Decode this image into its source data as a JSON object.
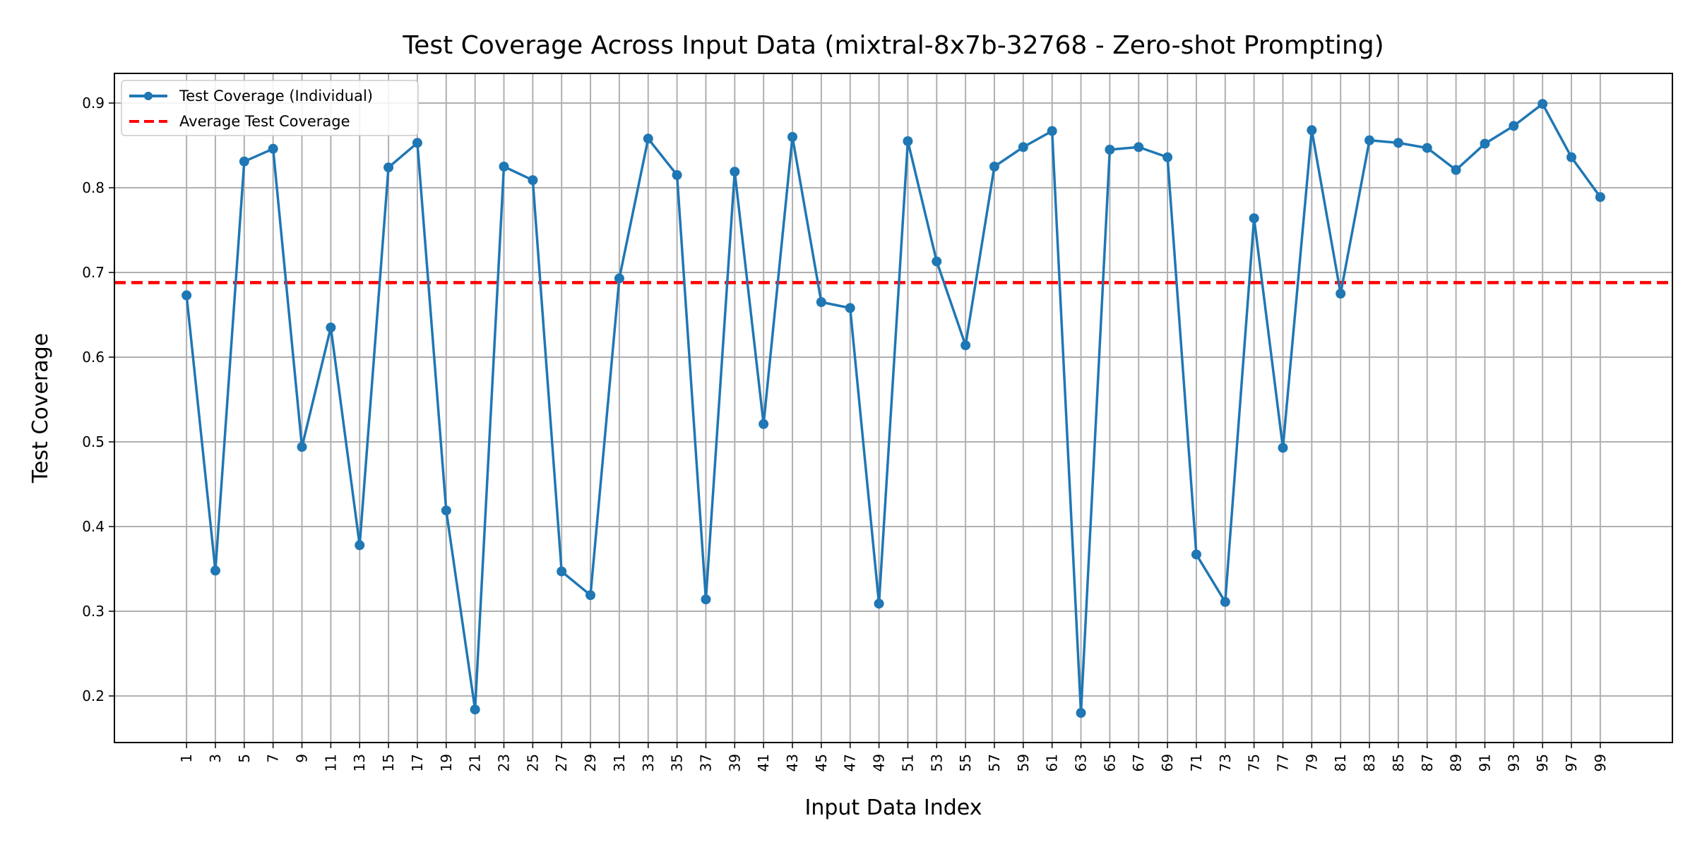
{
  "chart_data": {
    "type": "line",
    "title": "Test Coverage Across Input Data (mixtral-8x7b-32768 - Zero-shot Prompting)",
    "xlabel": "Input Data Index",
    "ylabel": "Test Coverage",
    "x": [
      1,
      3,
      5,
      7,
      9,
      11,
      13,
      15,
      17,
      19,
      21,
      23,
      25,
      27,
      29,
      31,
      33,
      35,
      37,
      39,
      41,
      43,
      45,
      47,
      49,
      51,
      53,
      55,
      57,
      59,
      61,
      63,
      65,
      67,
      69,
      71,
      73,
      75,
      77,
      79,
      81,
      83,
      85,
      87,
      89,
      91,
      93,
      95,
      97,
      99
    ],
    "xticks": [
      "1",
      "3",
      "5",
      "7",
      "9",
      "11",
      "13",
      "15",
      "17",
      "19",
      "21",
      "23",
      "25",
      "27",
      "29",
      "31",
      "33",
      "35",
      "37",
      "39",
      "41",
      "43",
      "45",
      "47",
      "49",
      "51",
      "53",
      "55",
      "57",
      "59",
      "61",
      "63",
      "65",
      "67",
      "69",
      "71",
      "73",
      "75",
      "77",
      "79",
      "81",
      "83",
      "85",
      "87",
      "89",
      "91",
      "93",
      "95",
      "97",
      "99"
    ],
    "yticks": [
      "0.2",
      "0.3",
      "0.4",
      "0.5",
      "0.6",
      "0.7",
      "0.8",
      "0.9"
    ],
    "ylim": [
      0.145,
      0.935
    ],
    "xlim": [
      -4,
      104
    ],
    "grid": true,
    "legend_position": "top-left",
    "series": [
      {
        "name": "Test Coverage (Individual)",
        "color": "#1f77b4",
        "style": "line-with-markers",
        "values": [
          0.673,
          0.348,
          0.831,
          0.846,
          0.494,
          0.635,
          0.378,
          0.824,
          0.853,
          0.419,
          0.184,
          0.825,
          0.809,
          0.347,
          0.319,
          0.693,
          0.858,
          0.815,
          0.314,
          0.819,
          0.521,
          0.86,
          0.665,
          0.658,
          0.309,
          0.855,
          0.713,
          0.614,
          0.825,
          0.848,
          0.867,
          0.18,
          0.845,
          0.848,
          0.836,
          0.367,
          0.311,
          0.764,
          0.493,
          0.868,
          0.675,
          0.856,
          0.853,
          0.847,
          0.821,
          0.852,
          0.873,
          0.899,
          0.836,
          0.789
        ]
      }
    ],
    "reference_lines": [
      {
        "name": "Average Test Coverage",
        "value": 0.688,
        "color": "#ff0000",
        "style": "dashed"
      }
    ]
  }
}
